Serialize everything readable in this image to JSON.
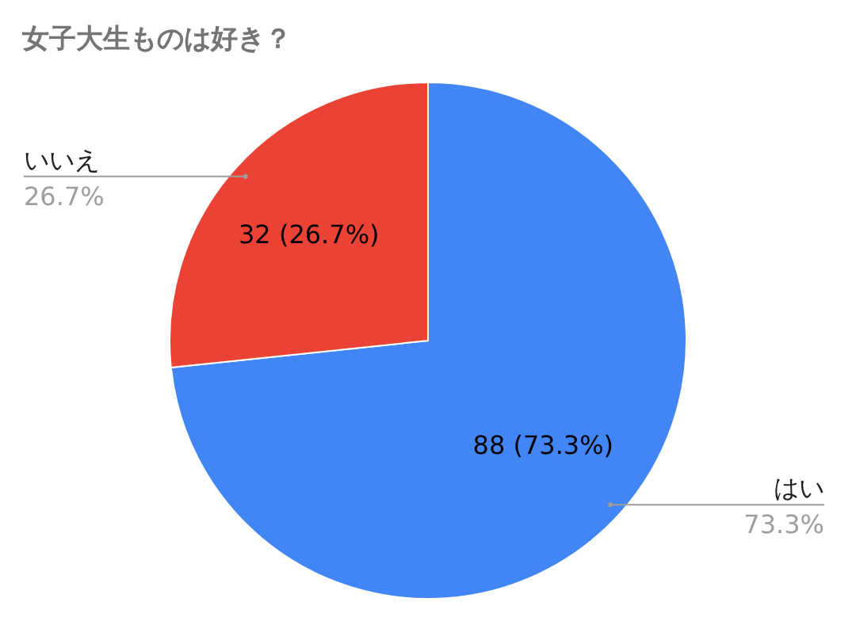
{
  "chart_data": {
    "type": "pie",
    "title": "女子大生ものは好き？",
    "categories": [
      "はい",
      "いいえ"
    ],
    "values": [
      88,
      32
    ],
    "colors": [
      "#4285f4",
      "#ea4335"
    ],
    "value_labels": [
      "88 (73.3%)",
      "32 (26.7%)"
    ],
    "annotations": [
      "73.3%",
      "26.7%"
    ]
  }
}
